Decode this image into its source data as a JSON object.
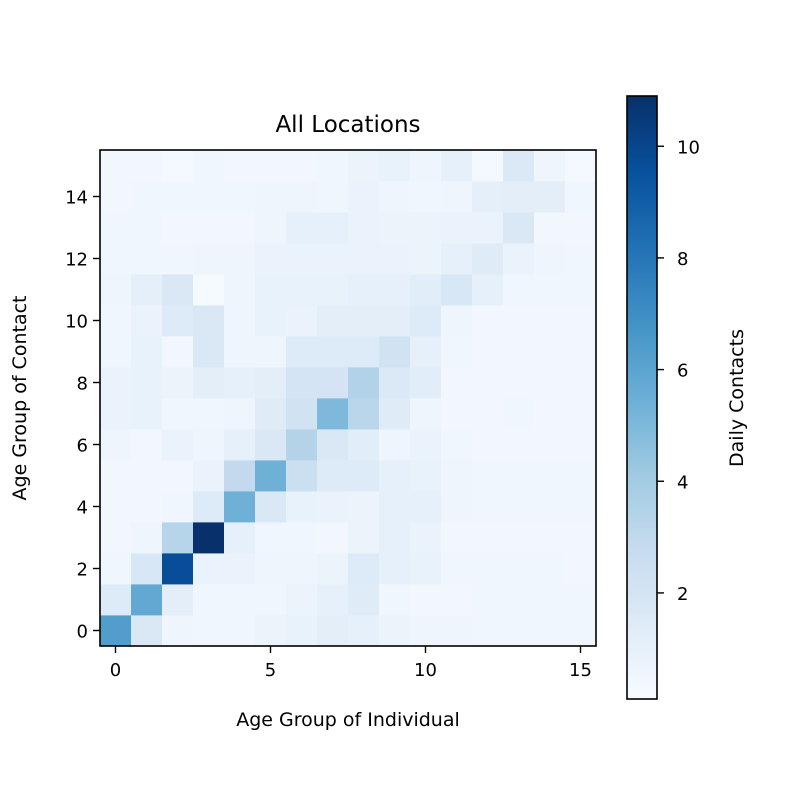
{
  "chart_data": {
    "type": "heatmap",
    "title": "All Locations",
    "xlabel": "Age Group of Individual",
    "ylabel": "Age Group of Contact",
    "colorbar_label": "Daily Contacts",
    "colormap": "Blues",
    "origin": "lower",
    "xlim": [
      -0.5,
      15.5
    ],
    "ylim": [
      -0.5,
      15.5
    ],
    "xticks": [
      0,
      5,
      10,
      15
    ],
    "yticks": [
      0,
      2,
      4,
      6,
      8,
      10,
      12,
      14
    ],
    "vmin": 0.1,
    "vmax": 10.9,
    "colorbar_ticks": [
      2,
      4,
      6,
      8,
      10
    ],
    "values": [
      [
        6.3,
        1.7,
        0.6,
        0.5,
        0.5,
        0.7,
        0.9,
        1.2,
        1.0,
        0.7,
        0.6,
        0.6,
        0.5,
        0.5,
        0.5,
        0.5
      ],
      [
        1.5,
        5.8,
        1.2,
        0.5,
        0.5,
        0.5,
        0.7,
        1.0,
        1.4,
        0.5,
        0.4,
        0.4,
        0.5,
        0.5,
        0.5,
        0.5
      ],
      [
        0.5,
        1.8,
        9.7,
        0.8,
        0.8,
        0.6,
        0.6,
        0.7,
        1.5,
        1.0,
        0.9,
        0.5,
        0.5,
        0.5,
        0.5,
        0.4
      ],
      [
        0.4,
        0.6,
        3.3,
        10.9,
        1.0,
        0.5,
        0.5,
        0.4,
        0.7,
        1.0,
        0.8,
        0.4,
        0.4,
        0.4,
        0.4,
        0.4
      ],
      [
        0.4,
        0.4,
        0.5,
        1.5,
        5.4,
        1.7,
        0.9,
        0.8,
        0.7,
        1.0,
        1.0,
        0.6,
        0.5,
        0.5,
        0.5,
        0.5
      ],
      [
        0.4,
        0.4,
        0.4,
        0.8,
        2.9,
        5.4,
        2.5,
        1.5,
        1.5,
        1.0,
        0.9,
        0.6,
        0.5,
        0.5,
        0.5,
        0.5
      ],
      [
        0.6,
        0.4,
        0.8,
        0.6,
        1.0,
        1.7,
        3.4,
        1.7,
        1.3,
        0.6,
        0.8,
        0.5,
        0.4,
        0.4,
        0.4,
        0.4
      ],
      [
        0.8,
        0.9,
        0.5,
        0.5,
        0.6,
        1.4,
        2.2,
        5.0,
        3.2,
        1.4,
        0.6,
        0.4,
        0.4,
        0.5,
        0.4,
        0.4
      ],
      [
        0.8,
        0.9,
        0.7,
        1.2,
        1.0,
        1.2,
        2.0,
        2.0,
        3.5,
        1.6,
        1.3,
        0.4,
        0.4,
        0.4,
        0.4,
        0.4
      ],
      [
        0.5,
        0.9,
        0.4,
        1.7,
        0.6,
        0.6,
        1.5,
        1.5,
        1.5,
        2.2,
        1.0,
        0.5,
        0.4,
        0.4,
        0.4,
        0.4
      ],
      [
        0.5,
        0.8,
        1.5,
        1.7,
        0.6,
        0.9,
        0.8,
        1.2,
        1.2,
        1.2,
        1.5,
        0.6,
        0.4,
        0.4,
        0.4,
        0.4
      ],
      [
        0.6,
        1.1,
        1.7,
        0.2,
        0.6,
        0.9,
        0.9,
        0.9,
        1.0,
        1.0,
        1.3,
        1.8,
        1.0,
        0.5,
        0.5,
        0.5
      ],
      [
        0.5,
        0.5,
        0.5,
        0.6,
        0.6,
        0.8,
        0.8,
        0.8,
        0.8,
        0.8,
        0.7,
        1.0,
        1.4,
        0.8,
        0.6,
        0.5
      ],
      [
        0.5,
        0.5,
        0.4,
        0.4,
        0.4,
        0.6,
        1.0,
        1.0,
        0.8,
        0.7,
        0.7,
        0.8,
        0.8,
        1.7,
        0.4,
        0.4
      ],
      [
        0.4,
        0.5,
        0.5,
        0.5,
        0.5,
        0.6,
        0.6,
        0.5,
        0.8,
        0.6,
        0.5,
        0.6,
        1.1,
        1.2,
        1.2,
        0.5
      ],
      [
        0.4,
        0.4,
        0.3,
        0.5,
        0.4,
        0.4,
        0.4,
        0.5,
        0.7,
        0.9,
        0.6,
        1.0,
        0.3,
        1.6,
        0.6,
        0.3
      ]
    ]
  }
}
